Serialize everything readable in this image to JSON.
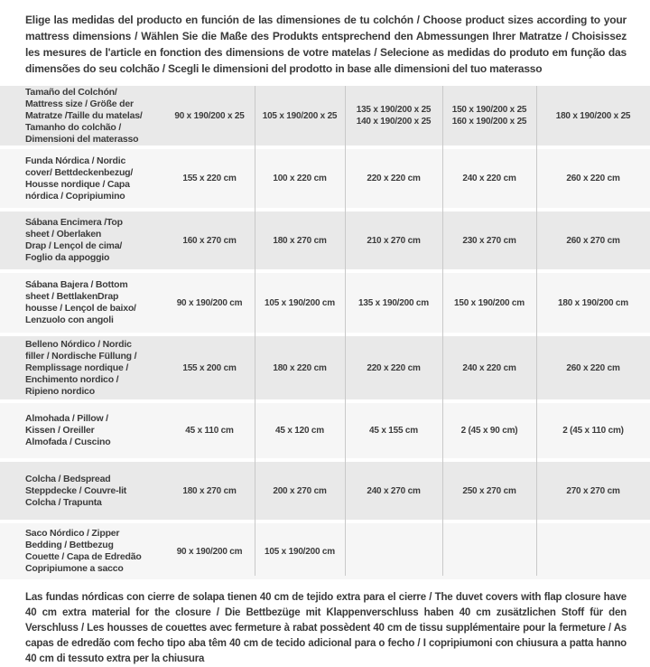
{
  "header": {
    "text": "Elige las medidas del producto en función de las dimensiones de tu colchón / Choose product sizes according to your mattress dimensions / Wählen Sie die Maße des Produkts entsprechend den Abmessungen Ihrer Matratze / Choisissez les mesures de l'article en fonction des dimensions de votre matelas / Selecione as medidas do produto em função das dimensões do seu colchão / Scegli le dimensioni del prodotto in base alle dimensioni del tuo materasso"
  },
  "colors": {
    "row_odd": "#e9e9e9",
    "row_even": "#f6f6f6",
    "divider": "#c9c9c9",
    "text": "#3c3c3c"
  },
  "table": {
    "rows": [
      {
        "label": "Tamaño del Colchón/\nMattress size / Größe der\nMatratze /Taille du matelas/\nTamanho do colchão /\nDimensioni del materasso",
        "values": [
          "90 x 190/200 x 25",
          "105 x 190/200 x 25",
          "135 x 190/200 x 25\n140 x 190/200 x 25",
          "150 x 190/200 x 25\n160 x 190/200 x 25",
          "180 x 190/200 x 25"
        ]
      },
      {
        "label": "Funda Nórdica /  Nordic\ncover/ Bettdeckenbezug/\nHousse nordique  / Capa\nnórdica / Copripiumino",
        "values": [
          "155 x 220 cm",
          "100 x 220 cm",
          "220 x 220 cm",
          "240 x 220 cm",
          "260 x 220 cm"
        ]
      },
      {
        "label": "Sábana Encimera /Top\nsheet / Oberlaken\nDrap / Lençol de cima/\nFoglio da appoggio",
        "values": [
          "160 x 270 cm",
          "180 x 270 cm",
          "210 x 270 cm",
          "230 x 270 cm",
          "260 x 270 cm"
        ]
      },
      {
        "label": "Sábana Bajera / Bottom\nsheet / BettlakenDrap\nhousse / Lençol de baixo/\nLenzuolo con angoli",
        "values": [
          "90 x 190/200 cm",
          "105 x 190/200 cm",
          "135 x 190/200 cm",
          "150 x 190/200 cm",
          "180 x 190/200 cm"
        ]
      },
      {
        "label": "Belleno Nórdico / Nordic\nfiller / Nordische Füllung /\nRemplissage nordique /\nEnchimento nordico /\nRipieno nordico",
        "values": [
          "155 x 200 cm",
          "180 x 220 cm",
          "220 x 220 cm",
          "240 x 220 cm",
          "260 x 220 cm"
        ]
      },
      {
        "label": "Almohada  / Pillow /\nKissen / Oreiller\nAlmofada / Cuscino",
        "values": [
          "45 x 110 cm",
          "45 x 120 cm",
          "45 x 155 cm",
          "2 (45 x 90 cm)",
          "2 (45 x 110 cm)"
        ]
      },
      {
        "label": "Colcha / Bedspread\nSteppdecke / Couvre-lit\nColcha / Trapunta",
        "values": [
          "180 x 270 cm",
          "200 x 270 cm",
          "240 x 270 cm",
          "250 x 270 cm",
          "270 x 270 cm"
        ]
      },
      {
        "label": "Saco Nórdico / Zipper\nBedding / Bettbezug\nCouette  / Capa de Edredão\nCopripiumone a sacco",
        "values": [
          "90 x 190/200 cm",
          "105 x 190/200 cm",
          "",
          "",
          ""
        ]
      }
    ]
  },
  "footer": {
    "text": "Las fundas nórdicas con cierre de solapa tienen 40 cm de tejido extra para el cierre  / The duvet covers with flap closure have 40 cm extra material for the closure / Die Bettbezüge mit Klappenverschluss haben 40 cm zusätzlichen Stoff für den Verschluss / Les housses de couettes avec fermeture à rabat possèdent 40 cm de tissu supplémentaire pour la fermeture / As capas de edredão com fecho tipo aba têm 40 cm de tecido adicional para o fecho / I copripiumoni con chiusura a patta hanno 40 cm di tessuto extra per la chiusura"
  }
}
